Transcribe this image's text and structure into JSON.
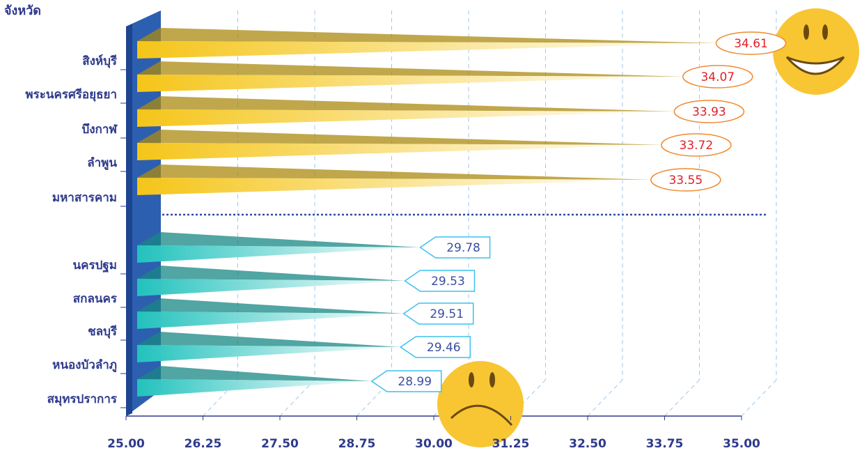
{
  "chart_data": {
    "type": "bar",
    "orientation": "horizontal",
    "y_label": "จังหวัด",
    "categories": [
      "สิงห์บุรี",
      "พระนครศรีอยุธยา",
      "บึงกาฬ",
      "ลำพูน",
      "มหาสารคาม",
      "นครปฐม",
      "สกลนคร",
      "ชลบุรี",
      "หนองบัวลำภู",
      "สมุทรปราการ"
    ],
    "values": [
      34.61,
      34.07,
      33.93,
      33.72,
      33.55,
      29.78,
      29.53,
      29.51,
      29.46,
      28.99
    ],
    "colors": [
      "#f5c518",
      "#f5c518",
      "#f5c518",
      "#f5c518",
      "#f5c518",
      "#22c2bd",
      "#22c2bd",
      "#22c2bd",
      "#22c2bd",
      "#22c2bd"
    ],
    "xlim": [
      25,
      35
    ],
    "xticks": [
      {
        "value": 25,
        "label": "25.00"
      },
      {
        "value": 26.25,
        "label": "26.25"
      },
      {
        "value": 27.5,
        "label": "27.50"
      },
      {
        "value": 28.75,
        "label": "28.75"
      },
      {
        "value": 30,
        "label": "30.00"
      },
      {
        "value": 31.25,
        "label": "31.25"
      },
      {
        "value": 32.5,
        "label": "32.50"
      },
      {
        "value": 33.75,
        "label": "33.75"
      },
      {
        "value": 35,
        "label": "35.00"
      }
    ],
    "grid": true
  }
}
